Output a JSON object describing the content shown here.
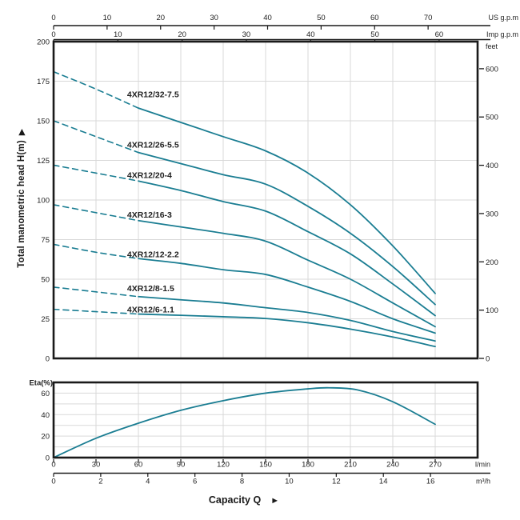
{
  "titles": {
    "y_axis": "Total manometric head H(m)",
    "y_axis_arrow": "▶",
    "x_axis": "Capacity Q",
    "x_axis_arrow": "►",
    "eta_axis": "Eta(%)"
  },
  "colors": {
    "curve": "#1a7d92",
    "grid": "#d9d9d9",
    "axis": "#1a1a1a",
    "text": "#1f1f1f"
  },
  "chart_data": [
    {
      "id": "head-capacity-curves",
      "type": "line",
      "x_axes": [
        {
          "label": "US g.p.m",
          "position": "top-outer",
          "lmin_per_unit": 3.7854,
          "ticks": [
            0,
            10,
            20,
            30,
            40,
            50,
            60,
            70
          ]
        },
        {
          "label": "Imp g.p.m",
          "position": "top-inner",
          "lmin_per_unit": 4.5461,
          "ticks": [
            0,
            10,
            20,
            30,
            40,
            50,
            60
          ]
        },
        {
          "label": "l/min",
          "position": "bottom-inner",
          "lmin_per_unit": 1,
          "ticks": [
            0,
            30,
            60,
            90,
            120,
            150,
            180,
            210,
            240,
            270
          ]
        },
        {
          "label": "m³/h",
          "position": "bottom-outer",
          "lmin_per_unit": 16.6667,
          "ticks": [
            0,
            2,
            4,
            6,
            8,
            10,
            12,
            14,
            16
          ]
        }
      ],
      "y_axis_left": {
        "label": "Total manometric head H(m)",
        "ticks": [
          0,
          25,
          50,
          75,
          100,
          125,
          150,
          175,
          200
        ]
      },
      "y_axis_right": {
        "label": "feet",
        "m_per_unit": 0.3048,
        "ticks": [
          0,
          100,
          200,
          300,
          400,
          500,
          600
        ]
      },
      "xlim_lmin": [
        0,
        300
      ],
      "ylim_m": [
        0,
        200
      ],
      "grid_step": {
        "x_lmin": 30,
        "y_m": 25
      },
      "dash_until_lmin": 60,
      "series": [
        {
          "name": "4XR12/32-7.5",
          "label_at": [
            52,
            165
          ],
          "points": [
            [
              0,
              181
            ],
            [
              30,
              170
            ],
            [
              60,
              158
            ],
            [
              90,
              149
            ],
            [
              120,
              140
            ],
            [
              150,
              131
            ],
            [
              180,
              117
            ],
            [
              210,
              97
            ],
            [
              240,
              71
            ],
            [
              270,
              41
            ]
          ]
        },
        {
          "name": "4XR12/26-5.5",
          "label_at": [
            52,
            133
          ],
          "points": [
            [
              0,
              150
            ],
            [
              30,
              140
            ],
            [
              60,
              130
            ],
            [
              90,
              123
            ],
            [
              120,
              116
            ],
            [
              150,
              110
            ],
            [
              180,
              96
            ],
            [
              210,
              79
            ],
            [
              240,
              58
            ],
            [
              270,
              34
            ]
          ]
        },
        {
          "name": "4XR12/20-4",
          "label_at": [
            52,
            114
          ],
          "points": [
            [
              0,
              122
            ],
            [
              30,
              117
            ],
            [
              60,
              112
            ],
            [
              90,
              106
            ],
            [
              120,
              99
            ],
            [
              150,
              93
            ],
            [
              180,
              80
            ],
            [
              210,
              66
            ],
            [
              240,
              47
            ],
            [
              270,
              27
            ]
          ]
        },
        {
          "name": "4XR12/16-3",
          "label_at": [
            52,
            89
          ],
          "points": [
            [
              0,
              97
            ],
            [
              30,
              92
            ],
            [
              60,
              87
            ],
            [
              90,
              83
            ],
            [
              120,
              79
            ],
            [
              150,
              74
            ],
            [
              180,
              62
            ],
            [
              210,
              50
            ],
            [
              240,
              35
            ],
            [
              270,
              20
            ]
          ]
        },
        {
          "name": "4XR12/12-2.2",
          "label_at": [
            52,
            64
          ],
          "points": [
            [
              0,
              72
            ],
            [
              30,
              67
            ],
            [
              60,
              63
            ],
            [
              90,
              60
            ],
            [
              120,
              56
            ],
            [
              150,
              53
            ],
            [
              180,
              45
            ],
            [
              210,
              36
            ],
            [
              240,
              25
            ],
            [
              270,
              16
            ]
          ]
        },
        {
          "name": "4XR12/8-1.5",
          "label_at": [
            52,
            42.5
          ],
          "points": [
            [
              0,
              45
            ],
            [
              30,
              42
            ],
            [
              60,
              39
            ],
            [
              90,
              37
            ],
            [
              120,
              35
            ],
            [
              150,
              32
            ],
            [
              180,
              29
            ],
            [
              210,
              24
            ],
            [
              240,
              17
            ],
            [
              270,
              11
            ]
          ]
        },
        {
          "name": "4XR12/6-1.1",
          "label_at": [
            52,
            29
          ],
          "points": [
            [
              0,
              31
            ],
            [
              30,
              29.5
            ],
            [
              60,
              28
            ],
            [
              90,
              27.2
            ],
            [
              120,
              26.3
            ],
            [
              150,
              25.2
            ],
            [
              180,
              22.5
            ],
            [
              210,
              18.5
            ],
            [
              240,
              13.5
            ],
            [
              270,
              7.5
            ]
          ]
        }
      ]
    },
    {
      "id": "efficiency-curve",
      "type": "line",
      "ylabel": "Eta(%)",
      "y_ticks": [
        0,
        20,
        40,
        60
      ],
      "ylim": [
        0,
        70
      ],
      "xlim_lmin": [
        0,
        300
      ],
      "grid_step": {
        "x_lmin": 30,
        "y": 10
      },
      "points": [
        [
          0,
          0
        ],
        [
          30,
          18
        ],
        [
          60,
          32
        ],
        [
          90,
          44
        ],
        [
          120,
          53
        ],
        [
          150,
          60
        ],
        [
          180,
          64
        ],
        [
          195,
          65
        ],
        [
          215,
          63
        ],
        [
          240,
          52
        ],
        [
          270,
          31
        ]
      ]
    }
  ]
}
